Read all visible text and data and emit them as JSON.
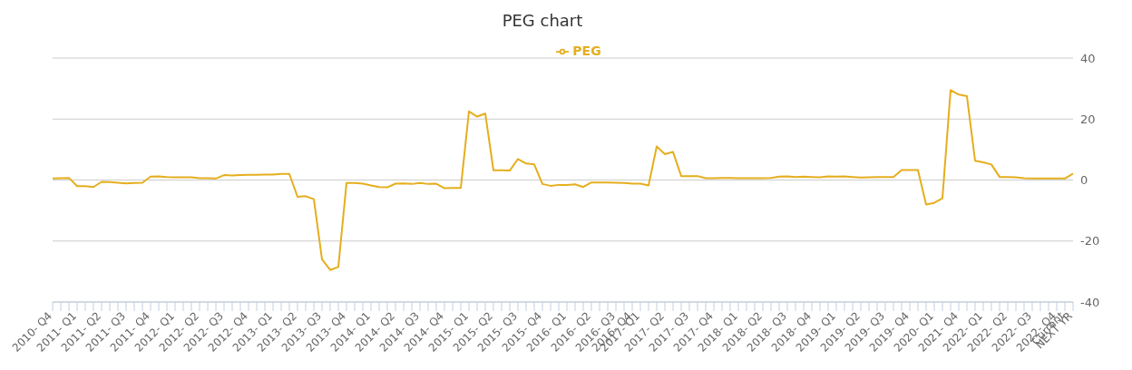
{
  "chart_data": {
    "type": "line",
    "title": "PEG chart",
    "categories": [
      "2010- Q4",
      null,
      null,
      "2011- Q1",
      null,
      null,
      "2011- Q2",
      null,
      null,
      "2011- Q3",
      null,
      null,
      "2011- Q4",
      null,
      null,
      "2012- Q1",
      null,
      null,
      "2012- Q2",
      null,
      null,
      "2012- Q3",
      null,
      null,
      "2012- Q4",
      null,
      null,
      "2013- Q1",
      null,
      null,
      "2013- Q2",
      null,
      null,
      "2013- Q3",
      null,
      null,
      "2013- Q4",
      null,
      null,
      "2014- Q1",
      null,
      null,
      "2014- Q2",
      null,
      null,
      "2014- Q3",
      null,
      null,
      "2014- Q4",
      null,
      null,
      "2015- Q1",
      null,
      null,
      "2015- Q2",
      null,
      null,
      "2015- Q3",
      null,
      null,
      "2015- Q4",
      null,
      null,
      "2016- Q1",
      null,
      null,
      "2016- Q2",
      null,
      null,
      "2016- Q3",
      null,
      "2016- Q4",
      "2017- Q1",
      null,
      null,
      "2017- Q2",
      null,
      null,
      "2017- Q3",
      null,
      null,
      "2017- Q4",
      null,
      null,
      "2018- Q1",
      null,
      null,
      "2018- Q2",
      null,
      null,
      "2018- Q3",
      null,
      null,
      "2018- Q4",
      null,
      null,
      "2019- Q1",
      null,
      null,
      "2019- Q2",
      null,
      null,
      "2019- Q3",
      null,
      null,
      "2019- Q4",
      null,
      null,
      "2020- Q1",
      null,
      null,
      "2021- Q4",
      null,
      null,
      "2022- Q1",
      null,
      null,
      "2022- Q2",
      null,
      null,
      "2022- Q3",
      null,
      null,
      "2022- Q4",
      "Current",
      "NEXT YR"
    ],
    "series": [
      {
        "name": "PEG",
        "color": "#e5ae1e",
        "values": [
          0.5,
          0.6,
          0.7,
          -2,
          -2,
          -2.3,
          -0.6,
          -0.7,
          -0.9,
          -1.1,
          -1,
          -0.9,
          1.1,
          1.2,
          1,
          0.9,
          0.9,
          0.9,
          0.6,
          0.6,
          0.5,
          1.6,
          1.5,
          1.6,
          1.7,
          1.7,
          1.8,
          1.8,
          2,
          2,
          -5.5,
          -5.3,
          -6.3,
          -26,
          -29.5,
          -28.5,
          -1,
          -1,
          -1.2,
          -1.8,
          -2.3,
          -2.4,
          -1.2,
          -1.1,
          -1.3,
          -1,
          -1.3,
          -1.2,
          -2.7,
          -2.6,
          -2.6,
          22.5,
          20.8,
          21.8,
          3.2,
          3.2,
          3.1,
          6.9,
          5.4,
          5.1,
          -1.3,
          -1.9,
          -1.6,
          -1.6,
          -1.4,
          -2.3,
          -0.8,
          -0.8,
          -0.8,
          -0.9,
          -1,
          -1.2,
          -1.2,
          -1.8,
          11,
          8.5,
          9.2,
          1.3,
          1.3,
          1.3,
          0.6,
          0.6,
          0.7,
          0.7,
          0.6,
          0.6,
          0.6,
          0.6,
          0.7,
          1.1,
          1.2,
          1,
          1.1,
          1,
          0.9,
          1.2,
          1.1,
          1.2,
          1,
          0.8,
          0.9,
          1,
          1,
          1,
          3.3,
          3.3,
          3.3,
          -8,
          -7.5,
          -6,
          29.5,
          28,
          27.5,
          6.3,
          5.8,
          5.1,
          1,
          1,
          0.9,
          0.6,
          0.5,
          0.5,
          0.5,
          0.5,
          0.5,
          2.1
        ]
      }
    ],
    "ylim": [
      -40,
      40
    ],
    "yticks": [
      -40,
      -20,
      0,
      20,
      40
    ],
    "grid": "y",
    "legend": "top",
    "marker": "none",
    "line_style": "solid"
  }
}
